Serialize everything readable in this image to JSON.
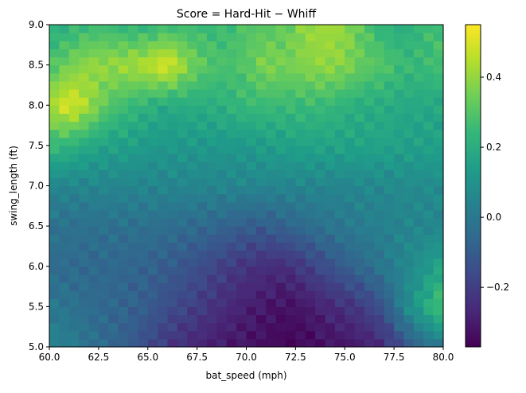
{
  "chart_data": {
    "type": "heatmap",
    "title": "Score = Hard-Hit − Whiff",
    "xlabel": "bat_speed (mph)",
    "ylabel": "swing_length (ft)",
    "xlim": [
      60.0,
      80.0
    ],
    "ylim": [
      5.0,
      9.0
    ],
    "x_ticks": [
      60.0,
      62.5,
      65.0,
      67.5,
      70.0,
      72.5,
      75.0,
      77.5,
      80.0
    ],
    "x_tick_labels": [
      "60.0",
      "62.5",
      "65.0",
      "67.5",
      "70.0",
      "72.5",
      "75.0",
      "77.5",
      "80.0"
    ],
    "y_ticks": [
      5.0,
      5.5,
      6.0,
      6.5,
      7.0,
      7.5,
      8.0,
      8.5,
      9.0
    ],
    "y_tick_labels": [
      "5.0",
      "5.5",
      "6.0",
      "6.5",
      "7.0",
      "7.5",
      "8.0",
      "8.5",
      "9.0"
    ],
    "colormap": "viridis",
    "colorbar": {
      "min": -0.37,
      "max": 0.55,
      "ticks": [
        -0.2,
        0.0,
        0.2,
        0.4
      ],
      "tick_labels": [
        "−0.2",
        "0.0",
        "0.2",
        "0.4"
      ]
    },
    "grid_resolution": {
      "nx": 40,
      "ny": 40
    },
    "z_anchor_x": [
      60,
      61,
      62,
      63,
      64,
      65,
      66,
      67,
      68,
      69,
      70,
      71,
      72,
      73,
      74,
      75,
      76,
      77,
      78,
      79,
      80
    ],
    "z_anchor_y": [
      5.0,
      5.5,
      6.0,
      6.5,
      7.0,
      7.5,
      8.0,
      8.5,
      9.0
    ],
    "z_anchor": [
      [
        0.05,
        0.02,
        -0.02,
        -0.06,
        -0.1,
        -0.16,
        -0.22,
        -0.26,
        -0.29,
        -0.31,
        -0.32,
        -0.34,
        -0.36,
        -0.35,
        -0.33,
        -0.32,
        -0.3,
        -0.25,
        -0.15,
        -0.05,
        0.0
      ],
      [
        0.0,
        -0.02,
        -0.05,
        -0.06,
        -0.08,
        -0.1,
        -0.15,
        -0.18,
        -0.22,
        -0.26,
        -0.29,
        -0.31,
        -0.33,
        -0.31,
        -0.27,
        -0.24,
        -0.2,
        -0.12,
        0.05,
        0.18,
        0.3
      ],
      [
        -0.05,
        -0.05,
        -0.06,
        -0.06,
        -0.07,
        -0.08,
        -0.1,
        -0.13,
        -0.16,
        -0.2,
        -0.23,
        -0.25,
        -0.25,
        -0.2,
        -0.15,
        -0.1,
        -0.05,
        0.0,
        0.05,
        0.1,
        0.18
      ],
      [
        -0.02,
        -0.03,
        -0.03,
        -0.03,
        -0.03,
        -0.03,
        -0.04,
        -0.05,
        -0.06,
        -0.08,
        -0.1,
        -0.1,
        -0.08,
        -0.05,
        -0.02,
        0.0,
        0.02,
        0.03,
        0.05,
        0.05,
        0.05
      ],
      [
        0.05,
        0.05,
        0.05,
        0.05,
        0.05,
        0.05,
        0.05,
        0.05,
        0.05,
        0.05,
        0.05,
        0.05,
        0.05,
        0.05,
        0.05,
        0.05,
        0.06,
        0.06,
        0.07,
        0.07,
        0.08
      ],
      [
        0.25,
        0.22,
        0.18,
        0.15,
        0.15,
        0.12,
        0.12,
        0.12,
        0.12,
        0.12,
        0.12,
        0.14,
        0.15,
        0.16,
        0.16,
        0.16,
        0.16,
        0.16,
        0.15,
        0.15,
        0.15
      ],
      [
        0.42,
        0.52,
        0.42,
        0.3,
        0.25,
        0.22,
        0.18,
        0.2,
        0.2,
        0.22,
        0.25,
        0.25,
        0.25,
        0.25,
        0.25,
        0.22,
        0.2,
        0.2,
        0.18,
        0.18,
        0.18
      ],
      [
        0.28,
        0.35,
        0.4,
        0.4,
        0.42,
        0.45,
        0.52,
        0.38,
        0.3,
        0.28,
        0.3,
        0.38,
        0.35,
        0.38,
        0.4,
        0.38,
        0.32,
        0.3,
        0.25,
        0.25,
        0.28
      ],
      [
        0.2,
        0.22,
        0.25,
        0.25,
        0.22,
        0.22,
        0.25,
        0.25,
        0.25,
        0.25,
        0.3,
        0.3,
        0.32,
        0.4,
        0.42,
        0.4,
        0.3,
        0.22,
        0.2,
        0.25,
        0.28
      ]
    ]
  }
}
